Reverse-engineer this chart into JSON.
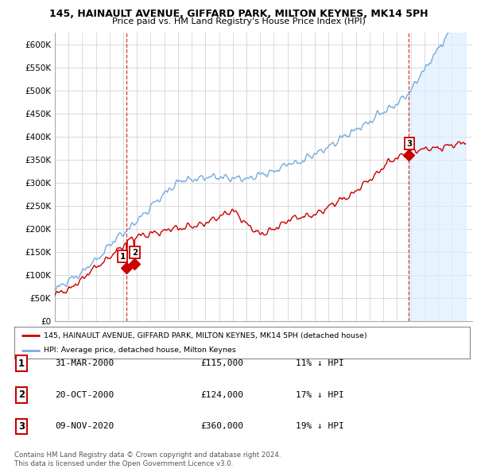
{
  "title": "145, HAINAULT AVENUE, GIFFARD PARK, MILTON KEYNES, MK14 5PH",
  "subtitle": "Price paid vs. HM Land Registry's House Price Index (HPI)",
  "yticks": [
    0,
    50000,
    100000,
    150000,
    200000,
    250000,
    300000,
    350000,
    400000,
    450000,
    500000,
    550000,
    600000
  ],
  "xlim_start": 1995.0,
  "xlim_end": 2025.5,
  "ylim_min": 0,
  "ylim_max": 625000,
  "legend_line1": "145, HAINAULT AVENUE, GIFFARD PARK, MILTON KEYNES, MK14 5PH (detached house)",
  "legend_line2": "HPI: Average price, detached house, Milton Keynes",
  "line_color_red": "#cc0000",
  "line_color_blue": "#7aaadd",
  "shade_color": "#ddeeff",
  "transactions": [
    {
      "id": 1,
      "date": 2000.25,
      "price": 115000,
      "label": "1",
      "date_str": "31-MAR-2000",
      "price_str": "£115,000",
      "pct_str": "11% ↓ HPI"
    },
    {
      "id": 2,
      "date": 2000.8,
      "price": 124000,
      "label": "2",
      "date_str": "20-OCT-2000",
      "price_str": "£124,000",
      "pct_str": "17% ↓ HPI"
    },
    {
      "id": 3,
      "date": 2020.85,
      "price": 360000,
      "label": "3",
      "date_str": "09-NOV-2020",
      "price_str": "£360,000",
      "pct_str": "19% ↓ HPI"
    }
  ],
  "footer_line1": "Contains HM Land Registry data © Crown copyright and database right 2024.",
  "footer_line2": "This data is licensed under the Open Government Licence v3.0.",
  "background_color": "#ffffff",
  "grid_color": "#cccccc"
}
